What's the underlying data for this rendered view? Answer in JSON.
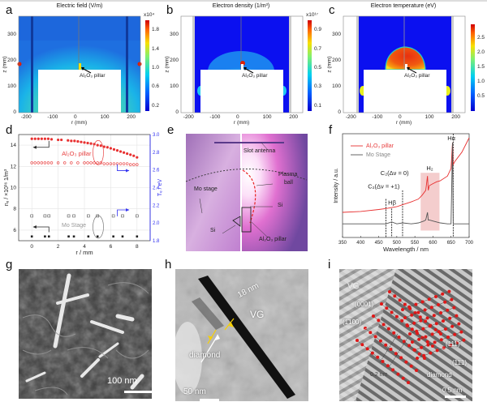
{
  "panels": {
    "a": {
      "label": "a",
      "title": "Electric field (V/m)",
      "colorbar_exp": "x10⁴",
      "colorbar_ticks": [
        "1.8",
        "1.4",
        "1.0",
        "0.6",
        "0.2"
      ],
      "annotation": "Al₂O₃ pillar"
    },
    "b": {
      "label": "b",
      "title": "Electron density (1/m³)",
      "colorbar_exp": "x10¹⁷",
      "colorbar_ticks": [
        "0.9",
        "0.7",
        "0.5",
        "0.3",
        "0.1"
      ],
      "annotation": "Al₂O₃ pillar"
    },
    "c": {
      "label": "c",
      "title": "Electron temperature (eV)",
      "colorbar_exp": "",
      "colorbar_ticks": [
        "2.5",
        "2.0",
        "1.5",
        "1.0",
        "0.5"
      ],
      "annotation": "Al₂O₃ pillar"
    },
    "maps_axes": {
      "xlabel": "r (mm)",
      "ylabel": "z (mm)",
      "xticks": [
        "-200",
        "-100",
        "0",
        "100",
        "200"
      ],
      "yticks": [
        "300",
        "200",
        "100",
        "0"
      ]
    },
    "d": {
      "label": "d"
    },
    "e": {
      "label": "e",
      "annotations": {
        "slot_antenna": "Slot antenna",
        "plasma_ball_1": "Plasma",
        "plasma_ball_2": "ball",
        "mo_stage": "Mo stage",
        "si_right": "Si",
        "si_left": "Si",
        "pillar": "Al₂O₃ pillar"
      }
    },
    "f": {
      "label": "f"
    },
    "g": {
      "label": "g",
      "scalebar": "100 nm"
    },
    "h": {
      "label": "h",
      "scalebar": "50 nm",
      "annotations": {
        "width": "18 nm",
        "vg": "VG",
        "diamond": "diamond"
      }
    },
    "i": {
      "label": "i",
      "scalebar": "0.5 nm",
      "annotations": {
        "vg": "VG",
        "plane1": "(0001)",
        "plane2": "(1̄100)",
        "plane3": "(111̄)",
        "plane4": "(11̄1)",
        "spacing": "0.2 nm",
        "diamond": "diamond"
      }
    }
  },
  "chart_data": [
    {
      "id": "d",
      "type": "scatter",
      "title": "",
      "xlabel": "r / mm",
      "ylabel": "nₑ / ×10¹⁶ 1/m³",
      "y2label": "Tₑ / eV",
      "xlim": [
        -1,
        9
      ],
      "ylim": [
        5,
        15
      ],
      "y2lim": [
        1.8,
        3.0
      ],
      "xticks": [
        0,
        2,
        4,
        6,
        8
      ],
      "yticks": [
        6,
        8,
        10,
        12,
        14
      ],
      "y2ticks": [
        1.8,
        2.0,
        2.2,
        2.4,
        2.6,
        2.8,
        3.0
      ],
      "annotations": [
        "Al₂O₃ pillar",
        "Mo Stage"
      ],
      "series": [
        {
          "name": "Al2O3 pillar ne",
          "axis": "left",
          "marker": "filled-circle",
          "color": "#e83030",
          "x": [
            0,
            0.25,
            0.5,
            0.75,
            1.0,
            1.25,
            1.5,
            2.0,
            2.25,
            2.75,
            3.0,
            3.25,
            3.5,
            3.75,
            4.0,
            4.25,
            4.5,
            4.75,
            5.0,
            5.25,
            5.5,
            5.75,
            6.0,
            6.25,
            6.5,
            6.75,
            7.0,
            7.25,
            7.5,
            7.75,
            8.0
          ],
          "y": [
            14.6,
            14.6,
            14.6,
            14.6,
            14.6,
            14.6,
            14.55,
            14.5,
            14.5,
            14.45,
            14.4,
            14.4,
            14.35,
            14.3,
            14.25,
            14.2,
            14.15,
            14.1,
            14.0,
            13.95,
            13.85,
            13.8,
            13.7,
            13.6,
            13.5,
            13.4,
            13.3,
            13.2,
            13.1,
            13.0,
            12.85
          ]
        },
        {
          "name": "Al2O3 pillar Te",
          "axis": "right",
          "marker": "open-circle",
          "color": "#e83030",
          "x": [
            0,
            0.25,
            0.5,
            0.75,
            1.0,
            1.25,
            1.5,
            2.0,
            2.5,
            3.0,
            3.5,
            4.0,
            4.25,
            4.5,
            4.75,
            5.0,
            5.25,
            5.5,
            5.75,
            6.0,
            6.25,
            6.5,
            6.75,
            7.0,
            7.25,
            7.5,
            7.75,
            8.0
          ],
          "y": [
            2.68,
            2.68,
            2.68,
            2.68,
            2.68,
            2.68,
            2.68,
            2.68,
            2.68,
            2.68,
            2.68,
            2.68,
            2.68,
            2.68,
            2.68,
            2.68,
            2.68,
            2.67,
            2.67,
            2.67,
            2.67,
            2.67,
            2.67,
            2.67,
            2.67,
            2.66,
            2.66,
            2.66
          ]
        },
        {
          "name": "Mo Stage Te",
          "axis": "right",
          "marker": "open-square",
          "color": "#555555",
          "x": [
            0,
            1.0,
            1.3,
            2.8,
            3.2,
            4.3,
            5.0,
            6.2,
            6.9,
            8.0
          ],
          "y": [
            2.08,
            2.08,
            2.08,
            2.08,
            2.08,
            2.08,
            2.08,
            2.08,
            2.08,
            2.08
          ]
        },
        {
          "name": "Mo Stage ne",
          "axis": "left",
          "marker": "filled-square",
          "color": "#222222",
          "x": [
            0,
            1.0,
            1.3,
            2.8,
            3.2,
            4.3,
            5.0,
            6.2,
            6.9,
            8.0
          ],
          "y": [
            5.4,
            5.4,
            5.4,
            5.4,
            5.4,
            5.4,
            5.4,
            5.4,
            5.4,
            5.4
          ]
        }
      ]
    },
    {
      "id": "f",
      "type": "line",
      "xlabel": "Wavelength / nm",
      "ylabel": "Intensity / a.u.",
      "xlim": [
        350,
        700
      ],
      "xticks": [
        350,
        400,
        450,
        500,
        550,
        600,
        650,
        700
      ],
      "legend": "top-left",
      "annotations": [
        "C₂(Δν = +1)",
        "C₂(Δν = 0)",
        "H₂",
        "Hβ",
        "Hα"
      ],
      "marker_lines_nm": [
        470,
        486,
        516,
        656
      ],
      "highlight_band_nm": [
        566,
        618
      ],
      "series": [
        {
          "name": "Al₂O₃ pillar",
          "color": "#e83030",
          "x": [
            350,
            400,
            450,
            470,
            486,
            500,
            516,
            540,
            560,
            570,
            580,
            585,
            587,
            590,
            600,
            610,
            620,
            640,
            650,
            654,
            656,
            660,
            680,
            700
          ],
          "y": [
            0.22,
            0.23,
            0.25,
            0.26,
            0.27,
            0.28,
            0.3,
            0.33,
            0.36,
            0.4,
            0.45,
            0.6,
            0.45,
            0.5,
            0.52,
            0.54,
            0.55,
            0.6,
            0.68,
            0.95,
            0.72,
            0.75,
            0.85,
            1.0
          ]
        },
        {
          "name": "Mo Stage",
          "color": "#555555",
          "x": [
            350,
            400,
            450,
            470,
            486,
            500,
            516,
            540,
            560,
            575,
            580,
            585,
            587,
            590,
            600,
            620,
            640,
            650,
            654,
            656,
            660,
            680,
            700
          ],
          "y": [
            0.1,
            0.1,
            0.1,
            0.1,
            0.12,
            0.1,
            0.11,
            0.1,
            0.11,
            0.13,
            0.14,
            0.22,
            0.14,
            0.14,
            0.13,
            0.11,
            0.1,
            0.1,
            0.95,
            0.1,
            0.1,
            0.1,
            0.1
          ]
        }
      ]
    }
  ]
}
